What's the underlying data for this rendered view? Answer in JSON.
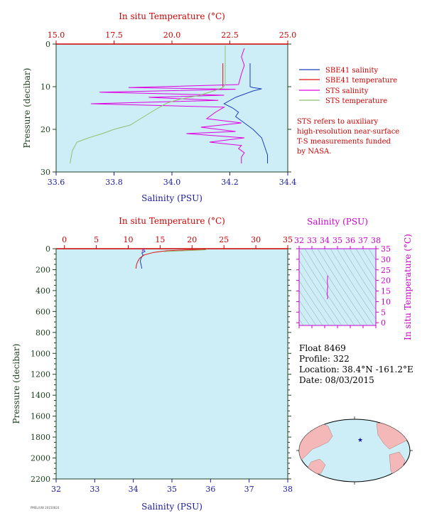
{
  "colors": {
    "panel_bg": "#cdeef6",
    "temp_axis": "#cc0000",
    "sal_axis": "#1a1aa0",
    "pressure_axis": "#1f4020",
    "ts_axis": "#cc00cc",
    "sbe_salinity": "#1f3fbf",
    "sbe_temperature": "#e01010",
    "sts_salinity": "#e000e0",
    "sts_temperature": "#90c070"
  },
  "legend": {
    "items": [
      {
        "label": "SBE41 salinity",
        "color": "#1f3fbf"
      },
      {
        "label": "SBE41 temperature",
        "color": "#e01010"
      },
      {
        "label": "STS salinity",
        "color": "#e000e0"
      },
      {
        "label": "STS temperature",
        "color": "#90c070"
      }
    ],
    "note": [
      "STS refers to auxiliary",
      "high-resolution near-surface",
      "T-S measurements funded",
      "by NASA."
    ]
  },
  "float_info": {
    "float": "Float  8469",
    "profile": "Profile:  322",
    "location": "Location:  38.4°N  -161.2°E",
    "date": "Date:  08/03/2015"
  },
  "footer_code": "PMEL/UW 20150824",
  "chart_data": [
    {
      "type": "line",
      "panel": "upper",
      "title": "",
      "top_xlabel": "In situ Temperature (°C)",
      "top_xlim": [
        15.0,
        25.0
      ],
      "top_xticks": [
        "15.0",
        "17.5",
        "20.0",
        "22.5",
        "25.0"
      ],
      "xlabel": "Salinity (PSU)",
      "xlim": [
        33.6,
        34.4
      ],
      "xticks": [
        "33.6",
        "33.8",
        "34.0",
        "34.2",
        "34.4"
      ],
      "ylabel": "Pressure (decibar)",
      "ylim": [
        0,
        30
      ],
      "yticks": [
        "0",
        "10",
        "20",
        "30"
      ],
      "y_inverted": true,
      "series": [
        {
          "name": "SBE41 salinity",
          "axis": "salinity",
          "x": [
            34.27,
            34.27,
            34.27,
            34.28,
            34.31,
            34.28,
            34.22,
            34.18,
            34.21,
            34.23,
            34.22,
            34.25,
            34.28,
            34.31,
            34.32,
            34.33,
            34.33
          ],
          "y": [
            4.5,
            8,
            10,
            10.2,
            10.5,
            11,
            12.5,
            14,
            15,
            16,
            17,
            18.5,
            20,
            22,
            24,
            26,
            28
          ]
        },
        {
          "name": "SBE41 temperature",
          "axis": "temperature",
          "x": [
            22.2,
            22.2,
            22.2,
            22.2
          ],
          "y": [
            4.5,
            8,
            9.8,
            10
          ]
        },
        {
          "name": "STS salinity",
          "axis": "salinity",
          "x": [
            34.25,
            34.24,
            34.25,
            34.24,
            34.23,
            33.85,
            34.22,
            33.75,
            34.18,
            33.92,
            34.16,
            33.72,
            34.18,
            34.15,
            34.12,
            34.24,
            34.1,
            34.22,
            34.05,
            34.25,
            34.13,
            34.24,
            34.23,
            34.25,
            34.24,
            34.24
          ],
          "y": [
            1,
            3,
            5,
            7,
            9.5,
            10.2,
            10.6,
            11.3,
            12,
            12.5,
            13.2,
            14,
            14.8,
            16,
            17.5,
            18.5,
            19.5,
            20.5,
            21,
            22,
            23,
            23.8,
            24.5,
            25.5,
            26.5,
            28
          ]
        },
        {
          "name": "STS temperature",
          "axis": "temperature",
          "x": [
            22.3,
            22.3,
            22.3,
            22.3,
            22.3,
            22.2,
            21.8,
            21.2,
            20.3,
            19.8,
            19.4,
            18.8,
            18.2,
            17.5,
            17.0,
            16.4,
            15.9,
            15.7,
            15.6
          ],
          "y": [
            0.3,
            3,
            6,
            8,
            9.5,
            10.2,
            11,
            12,
            13,
            13.8,
            15,
            17,
            19,
            20,
            21,
            22,
            23,
            25,
            28
          ]
        }
      ]
    },
    {
      "type": "line",
      "panel": "lower",
      "title": "",
      "top_xlabel": "In situ Temperature (°C)",
      "top_xlim": [
        -1.3,
        35
      ],
      "top_xticks": [
        "0",
        "5",
        "10",
        "15",
        "20",
        "25",
        "30",
        "35"
      ],
      "xlabel": "Salinity (PSU)",
      "xlim": [
        32,
        38
      ],
      "xticks": [
        "32",
        "33",
        "34",
        "35",
        "36",
        "37",
        "38"
      ],
      "ylabel": "Pressure (decibar)",
      "ylim": [
        0,
        2200
      ],
      "yticks": [
        "0",
        "200",
        "400",
        "600",
        "800",
        "1000",
        "1200",
        "1400",
        "1600",
        "1800",
        "2000",
        "2200"
      ],
      "y_inverted": true,
      "series": [
        {
          "name": "SBE41 salinity",
          "axis": "salinity",
          "x": [
            34.28,
            34.27,
            34.3,
            34.22,
            34.25,
            34.2,
            34.18,
            34.2,
            34.22
          ],
          "y": [
            5,
            15,
            25,
            40,
            60,
            90,
            120,
            150,
            190
          ]
        },
        {
          "name": "SBE41 temperature",
          "axis": "temperature",
          "x": [
            22.3,
            21.5,
            19.0,
            16.0,
            14.0,
            12.5,
            11.8,
            11.5,
            11.3,
            11.2
          ],
          "y": [
            5,
            8,
            12,
            20,
            35,
            60,
            90,
            120,
            150,
            190
          ]
        },
        {
          "name": "STS salinity",
          "axis": "salinity",
          "x": [
            34.25,
            34.24,
            34.23
          ],
          "y": [
            1,
            10,
            28
          ]
        },
        {
          "name": "STS temperature",
          "axis": "temperature",
          "x": [
            22.3,
            22.2,
            15.6
          ],
          "y": [
            1,
            10,
            28
          ]
        }
      ]
    },
    {
      "type": "line",
      "panel": "ts",
      "title": "",
      "xlabel": "Salinity (PSU)",
      "xlim": [
        32,
        38
      ],
      "xticks": [
        "32",
        "33",
        "34",
        "35",
        "36",
        "37",
        "38"
      ],
      "ylabel": "In situ Temperature (°C)",
      "ylim": [
        -1.3,
        35
      ],
      "yticks": [
        "0",
        "5",
        "10",
        "15",
        "20",
        "25",
        "30",
        "35"
      ],
      "series": [
        {
          "name": "T-S curve",
          "x": [
            34.2,
            34.25,
            34.18,
            34.22,
            34.2,
            34.25,
            34.22,
            34.2,
            34.22,
            34.23,
            34.24
          ],
          "y": [
            11.2,
            12.0,
            13.5,
            14.5,
            15.6,
            17.0,
            18.5,
            19.5,
            20.5,
            21.5,
            22.3
          ]
        }
      ]
    }
  ]
}
